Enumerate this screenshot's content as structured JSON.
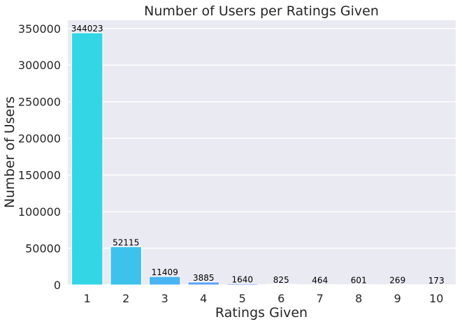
{
  "chart_data": {
    "type": "bar",
    "title": "Number of Users per Ratings Given",
    "xlabel": "Ratings Given",
    "ylabel": "Number of Users",
    "categories": [
      "1",
      "2",
      "3",
      "4",
      "5",
      "6",
      "7",
      "8",
      "9",
      "10"
    ],
    "values": [
      344023,
      52115,
      11409,
      3885,
      1640,
      825,
      464,
      601,
      269,
      173
    ],
    "data_labels": [
      "344023",
      "52115",
      "11409",
      "3885",
      "1640",
      "825",
      "464",
      "601",
      "269",
      "173"
    ],
    "yticks": [
      0,
      50000,
      100000,
      150000,
      200000,
      250000,
      300000,
      350000
    ],
    "ytick_labels": [
      "0",
      "50000",
      "100000",
      "150000",
      "200000",
      "250000",
      "300000",
      "350000"
    ],
    "ylim": [
      0,
      361224
    ],
    "grid": true,
    "colors": {
      "background": "#EAEAF2",
      "grid": "#FFFFFF",
      "bars": [
        "#33D6E4",
        "#3DC3EB",
        "#4AB3F2",
        "#5CA0F5",
        "#6B90F7",
        "#7B80F8",
        "#8A70F9",
        "#9A60FA",
        "#AA50FB",
        "#BA40FC"
      ]
    }
  }
}
